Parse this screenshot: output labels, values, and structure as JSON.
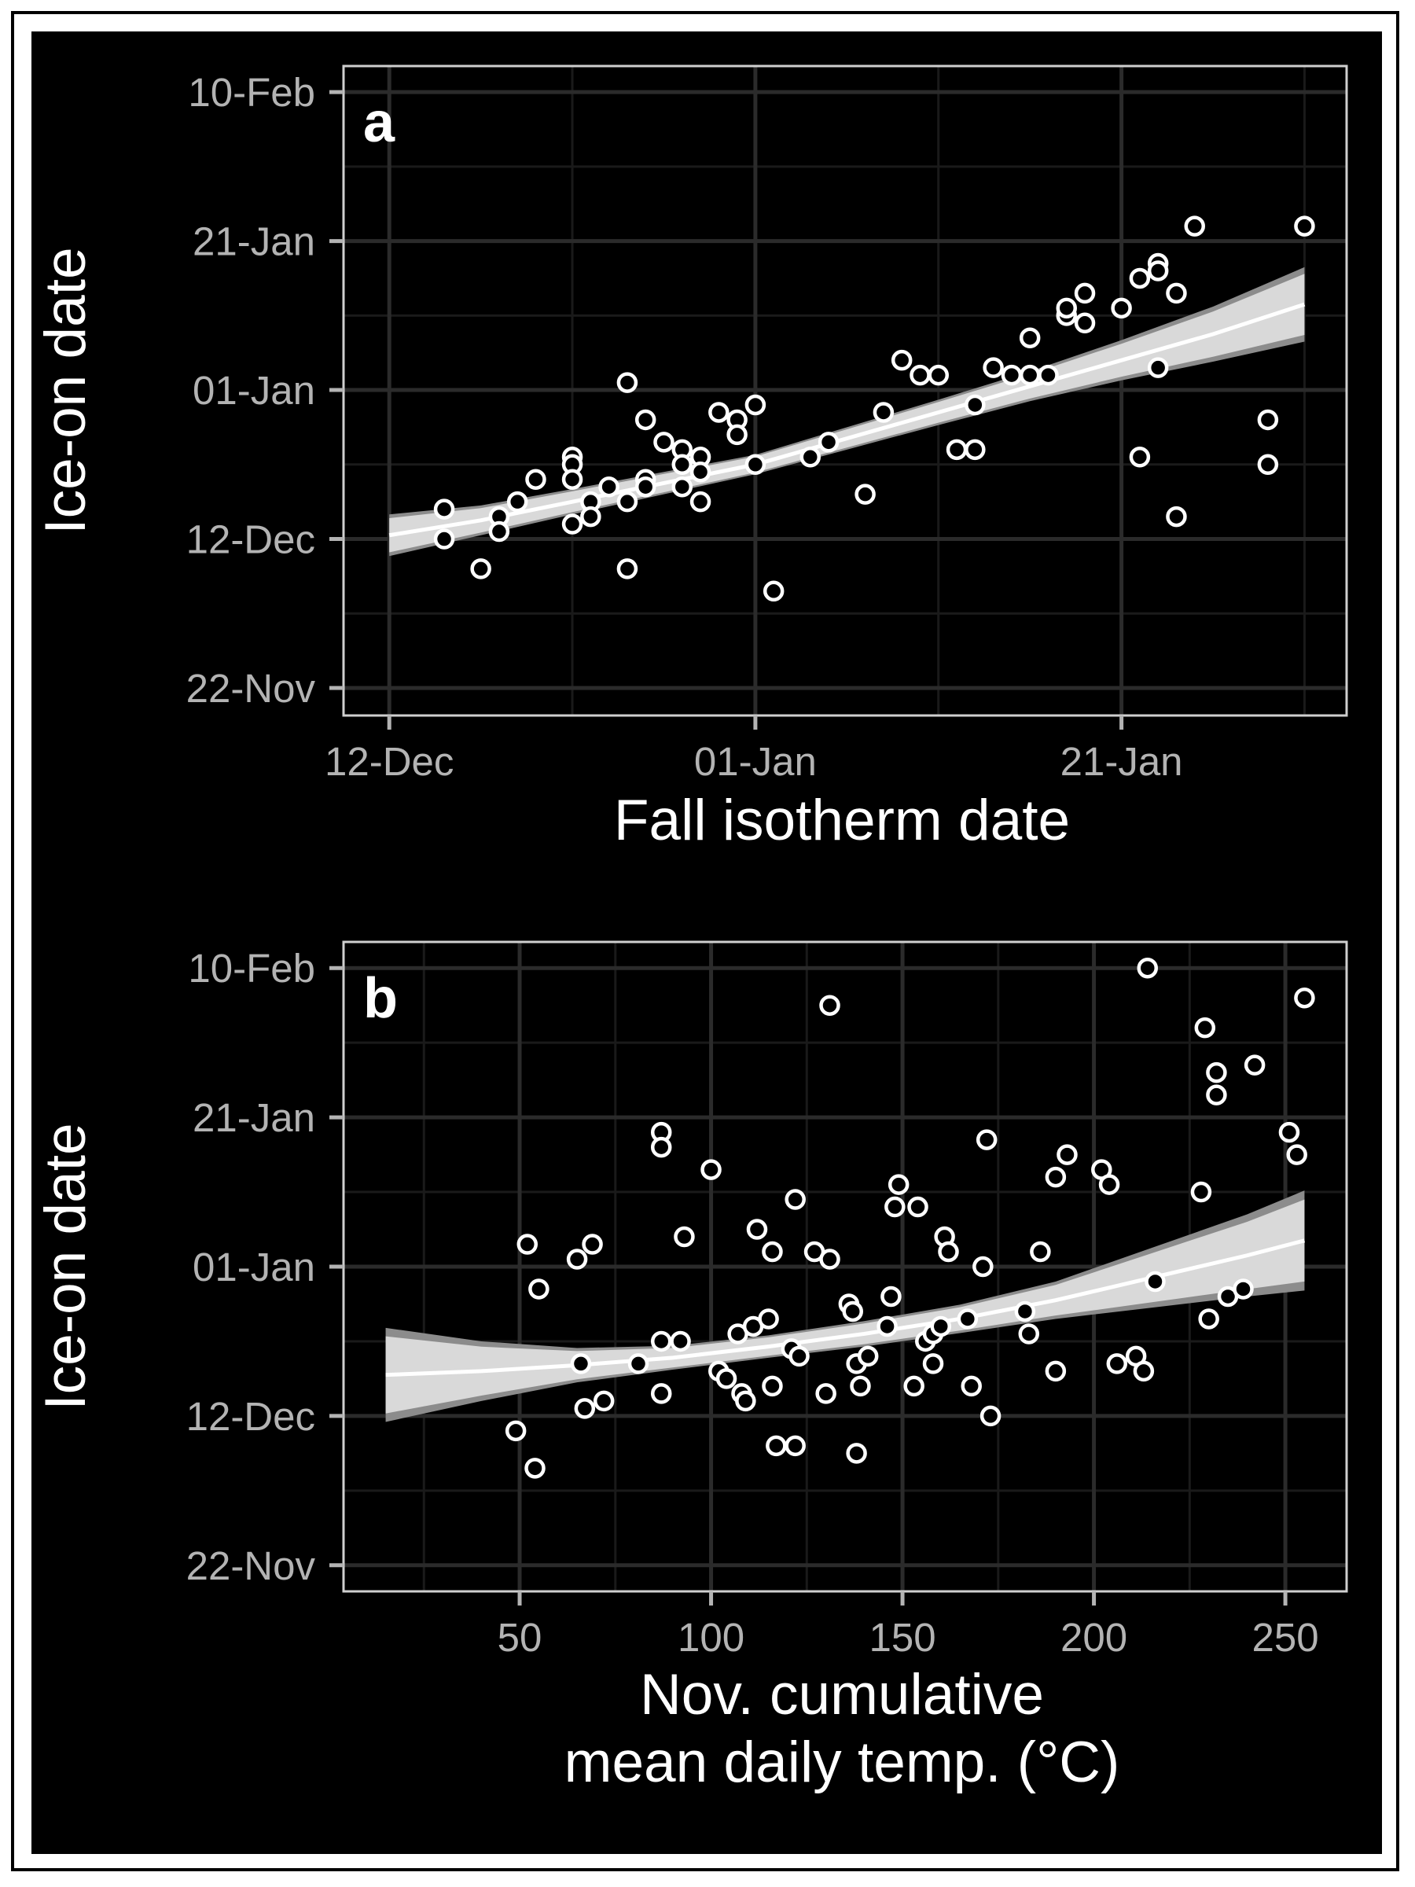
{
  "colors": {
    "background": "#000000",
    "grid_major": "#2b2b2b",
    "grid_minor": "#1a1a1a",
    "panel_border": "#cfcfcf",
    "tick_text": "#b3b3b3",
    "title_text": "#ffffff",
    "point_stroke": "#ffffff",
    "fit_line": "#ffffff",
    "ci_inner": "#d9d9d9",
    "ci_outer": "#8c8c8c"
  },
  "chart_data": [
    {
      "type": "scatter",
      "panel_label": "a",
      "xlabel": "Fall isotherm date",
      "ylabel": "Ice-on date",
      "x_ticks": [
        {
          "label": "12-Dec",
          "value": 0
        },
        {
          "label": "01-Jan",
          "value": 20
        },
        {
          "label": "21-Jan",
          "value": 40
        }
      ],
      "y_ticks": [
        {
          "label": "22-Nov",
          "value": -20
        },
        {
          "label": "12-Dec",
          "value": 0
        },
        {
          "label": "01-Jan",
          "value": 20
        },
        {
          "label": "21-Jan",
          "value": 40
        },
        {
          "label": "10-Feb",
          "value": 60
        }
      ],
      "xlim": [
        -2.5,
        52.3
      ],
      "ylim": [
        -23.7,
        63.5
      ],
      "grid": true,
      "points": [
        [
          3,
          4
        ],
        [
          3,
          0
        ],
        [
          5,
          -4
        ],
        [
          6,
          3
        ],
        [
          6,
          1
        ],
        [
          7,
          5
        ],
        [
          8,
          8
        ],
        [
          10,
          11
        ],
        [
          10,
          10
        ],
        [
          10,
          8
        ],
        [
          10,
          2
        ],
        [
          11,
          5
        ],
        [
          11,
          3
        ],
        [
          12,
          7
        ],
        [
          13,
          5
        ],
        [
          13,
          -4
        ],
        [
          13,
          21
        ],
        [
          14,
          16
        ],
        [
          14,
          8
        ],
        [
          14,
          7
        ],
        [
          15,
          13
        ],
        [
          16,
          7
        ],
        [
          16,
          12
        ],
        [
          16,
          10
        ],
        [
          17,
          5
        ],
        [
          17,
          11
        ],
        [
          17,
          9
        ],
        [
          18,
          17
        ],
        [
          19,
          16
        ],
        [
          19,
          14
        ],
        [
          20,
          18
        ],
        [
          20,
          10
        ],
        [
          21,
          -7
        ],
        [
          23,
          11
        ],
        [
          24,
          13
        ],
        [
          26,
          6
        ],
        [
          27,
          17
        ],
        [
          28,
          24
        ],
        [
          29,
          22
        ],
        [
          30,
          22
        ],
        [
          31,
          12
        ],
        [
          32,
          12
        ],
        [
          32,
          18
        ],
        [
          33,
          23
        ],
        [
          34,
          22
        ],
        [
          35,
          22
        ],
        [
          35,
          27
        ],
        [
          36,
          22
        ],
        [
          37,
          30
        ],
        [
          37,
          31
        ],
        [
          38,
          33
        ],
        [
          38,
          29
        ],
        [
          40,
          31
        ],
        [
          41,
          11
        ],
        [
          41,
          35
        ],
        [
          42,
          37
        ],
        [
          42,
          36
        ],
        [
          42,
          23
        ],
        [
          43,
          3
        ],
        [
          43,
          33
        ],
        [
          44,
          42
        ],
        [
          48,
          16
        ],
        [
          48,
          10
        ],
        [
          50,
          42
        ]
      ],
      "fit": {
        "x": [
          0,
          5,
          10,
          15,
          20,
          25,
          30,
          35,
          40,
          45,
          50
        ],
        "y": [
          0.5,
          2.5,
          5,
          7.5,
          10,
          13.5,
          17,
          20.5,
          24,
          27.5,
          31.5
        ],
        "lo": [
          -2.3,
          0.5,
          3.3,
          6.0,
          8.7,
          12.0,
          15.3,
          18.5,
          21.3,
          23.8,
          26.5
        ],
        "hi": [
          3.3,
          4.5,
          6.7,
          9.0,
          11.3,
          15.0,
          18.7,
          22.5,
          26.7,
          31.2,
          36.5
        ]
      }
    },
    {
      "type": "scatter",
      "panel_label": "b",
      "xlabel": "Nov. cumulative\nmean daily temp. (°C)",
      "ylabel": "Ice-on date",
      "x_ticks": [
        {
          "label": "50",
          "value": 50
        },
        {
          "label": "100",
          "value": 100
        },
        {
          "label": "150",
          "value": 150
        },
        {
          "label": "200",
          "value": 200
        },
        {
          "label": "250",
          "value": 250
        }
      ],
      "y_ticks": [
        {
          "label": "22-Nov",
          "value": -20
        },
        {
          "label": "12-Dec",
          "value": 0
        },
        {
          "label": "01-Jan",
          "value": 20
        },
        {
          "label": "21-Jan",
          "value": 40
        },
        {
          "label": "10-Feb",
          "value": 60
        }
      ],
      "xlim": [
        4,
        266
      ],
      "ylim": [
        -23.5,
        63.5
      ],
      "grid": true,
      "points": [
        [
          49,
          -2
        ],
        [
          52,
          23
        ],
        [
          54,
          -7
        ],
        [
          55,
          17
        ],
        [
          65,
          21
        ],
        [
          66,
          7
        ],
        [
          67,
          1
        ],
        [
          69,
          23
        ],
        [
          72,
          2
        ],
        [
          81,
          7
        ],
        [
          87,
          38
        ],
        [
          87,
          36
        ],
        [
          87,
          10
        ],
        [
          87,
          3
        ],
        [
          92,
          10
        ],
        [
          93,
          24
        ],
        [
          100,
          33
        ],
        [
          102,
          6
        ],
        [
          104,
          5
        ],
        [
          107,
          11
        ],
        [
          108,
          3
        ],
        [
          109,
          2
        ],
        [
          111,
          12
        ],
        [
          112,
          25
        ],
        [
          115,
          13
        ],
        [
          116,
          22
        ],
        [
          116,
          4
        ],
        [
          117,
          -4
        ],
        [
          121,
          9
        ],
        [
          122,
          29
        ],
        [
          122,
          -4
        ],
        [
          123,
          8
        ],
        [
          127,
          22
        ],
        [
          130,
          3
        ],
        [
          131,
          55
        ],
        [
          131,
          21
        ],
        [
          136,
          15
        ],
        [
          137,
          14
        ],
        [
          138,
          -5
        ],
        [
          138,
          7
        ],
        [
          139,
          4
        ],
        [
          141,
          8
        ],
        [
          146,
          12
        ],
        [
          147,
          16
        ],
        [
          148,
          28
        ],
        [
          149,
          31
        ],
        [
          153,
          4
        ],
        [
          154,
          28
        ],
        [
          156,
          10
        ],
        [
          158,
          7
        ],
        [
          158,
          11
        ],
        [
          160,
          12
        ],
        [
          161,
          24
        ],
        [
          162,
          22
        ],
        [
          167,
          13
        ],
        [
          168,
          4
        ],
        [
          171,
          20
        ],
        [
          172,
          37
        ],
        [
          173,
          0
        ],
        [
          182,
          14
        ],
        [
          183,
          11
        ],
        [
          186,
          22
        ],
        [
          190,
          6
        ],
        [
          190,
          32
        ],
        [
          193,
          35
        ],
        [
          202,
          33
        ],
        [
          204,
          31
        ],
        [
          206,
          7
        ],
        [
          211,
          8
        ],
        [
          213,
          6
        ],
        [
          214,
          60
        ],
        [
          216,
          18
        ],
        [
          228,
          30
        ],
        [
          229,
          52
        ],
        [
          230,
          13
        ],
        [
          232,
          43
        ],
        [
          232,
          46
        ],
        [
          235,
          16
        ],
        [
          239,
          17
        ],
        [
          242,
          47
        ],
        [
          251,
          38
        ],
        [
          253,
          35
        ],
        [
          255,
          56
        ]
      ],
      "fit": {
        "x": [
          15,
          40,
          65,
          90,
          115,
          140,
          165,
          190,
          215,
          240,
          255
        ],
        "y": [
          5.5,
          6.0,
          6.8,
          7.8,
          9.3,
          11.0,
          13.0,
          15.5,
          18.5,
          21.5,
          23.5
        ],
        "lo": [
          -0.8,
          2.0,
          4.5,
          6.2,
          7.8,
          9.3,
          11.1,
          13.0,
          14.5,
          16.0,
          16.8
        ],
        "hi": [
          11.8,
          10.0,
          9.1,
          9.4,
          10.8,
          12.7,
          14.9,
          18.0,
          22.5,
          27.0,
          30.2
        ]
      }
    }
  ]
}
